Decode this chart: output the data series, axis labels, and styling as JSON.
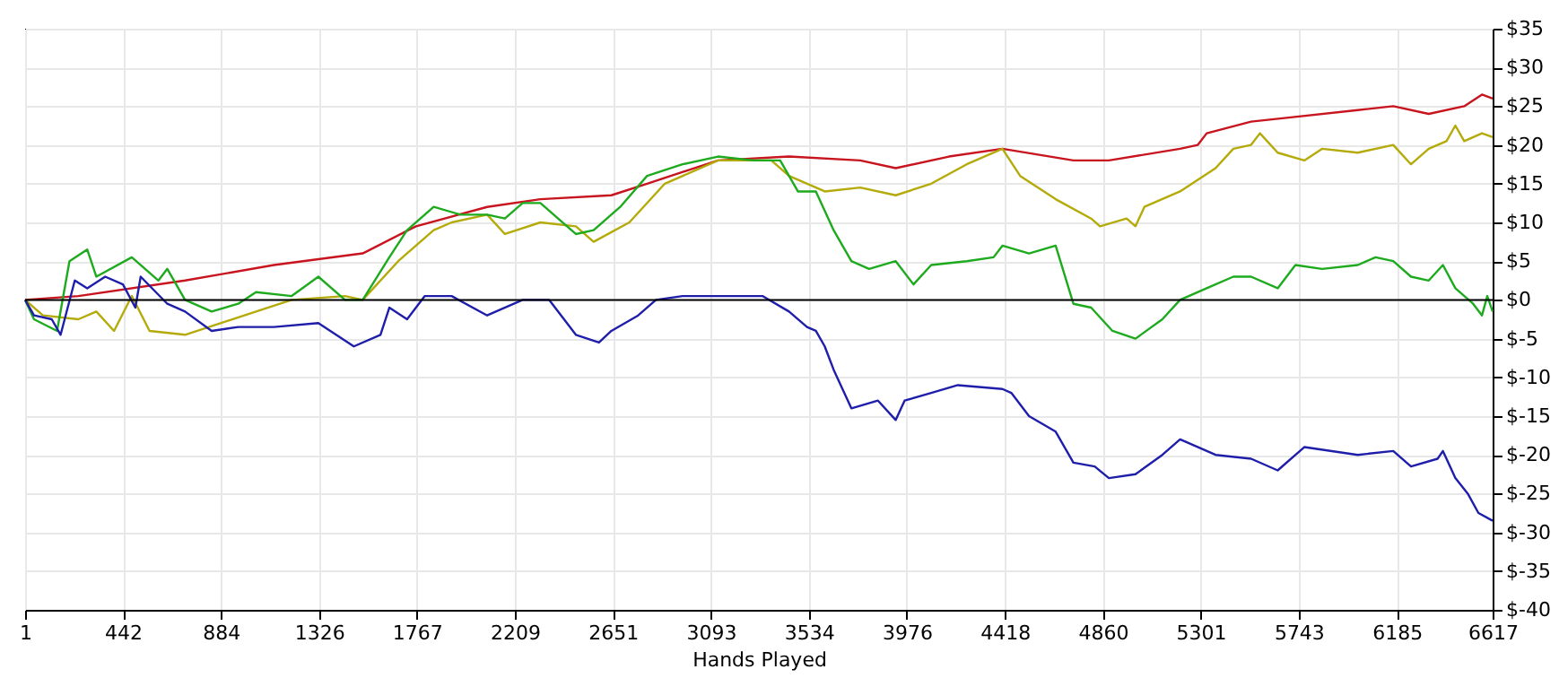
{
  "chart_data": {
    "type": "line",
    "xlabel": "Hands Played",
    "xlim": [
      1,
      6617
    ],
    "xticks": [
      1,
      442,
      884,
      1326,
      1767,
      2209,
      2651,
      3093,
      3534,
      3976,
      4418,
      4860,
      5301,
      5743,
      6185,
      6617
    ],
    "ylim": [
      -40,
      35
    ],
    "yticks": [
      {
        "value": 35,
        "label": "$35"
      },
      {
        "value": 30,
        "label": "$30"
      },
      {
        "value": 25,
        "label": "$25"
      },
      {
        "value": 20,
        "label": "$20"
      },
      {
        "value": 15,
        "label": "$15"
      },
      {
        "value": 10,
        "label": "$10"
      },
      {
        "value": 5,
        "label": "$5"
      },
      {
        "value": 0,
        "label": "$0"
      },
      {
        "value": -5,
        "label": "$-5"
      },
      {
        "value": -10,
        "label": "$-10"
      },
      {
        "value": -15,
        "label": "$-15"
      },
      {
        "value": -20,
        "label": "$-20"
      },
      {
        "value": -25,
        "label": "$-25"
      },
      {
        "value": -30,
        "label": "$-30"
      },
      {
        "value": -35,
        "label": "$-35"
      },
      {
        "value": -40,
        "label": "$-40"
      }
    ],
    "grid": true,
    "marker": "none",
    "line_style": "solid",
    "ref_lines": [
      {
        "axis": "y",
        "value": 0,
        "color": "#000000"
      }
    ],
    "series": [
      {
        "color": "#c8141e",
        "x": [
          1,
          241,
          722,
          1123,
          1523,
          1763,
          2084,
          2324,
          2644,
          2805,
          3125,
          3445,
          3766,
          3926,
          4166,
          4407,
          4727,
          4887,
          5208,
          5288,
          5328,
          5528,
          5688,
          6009,
          6169,
          6329,
          6489,
          6569,
          6617
        ],
        "values": [
          0,
          0.5,
          2.5,
          4.5,
          6,
          9.5,
          12,
          13,
          13.5,
          15,
          18,
          18.5,
          18,
          17,
          18.5,
          19.5,
          18,
          18,
          19.5,
          20,
          21.5,
          23,
          23.5,
          24.5,
          25,
          24,
          25,
          26.5,
          26
        ]
      },
      {
        "color": "#b4aa0a",
        "x": [
          1,
          81,
          241,
          322,
          402,
          482,
          562,
          722,
          882,
          1042,
          1203,
          1443,
          1523,
          1683,
          1843,
          1924,
          2084,
          2164,
          2324,
          2484,
          2564,
          2725,
          2885,
          3125,
          3365,
          3445,
          3606,
          3766,
          3926,
          4086,
          4246,
          4407,
          4487,
          4647,
          4807,
          4847,
          4967,
          5007,
          5047,
          5208,
          5368,
          5448,
          5528,
          5568,
          5648,
          5768,
          5848,
          6009,
          6169,
          6249,
          6329,
          6409,
          6449,
          6489,
          6569,
          6617
        ],
        "values": [
          0,
          -2,
          -2.5,
          -1.5,
          -4,
          0.5,
          -4,
          -4.5,
          -3,
          -1.5,
          0,
          0.5,
          0,
          5,
          9,
          10,
          11,
          8.5,
          10,
          9.5,
          7.5,
          10,
          15,
          18,
          18,
          16,
          14,
          14.5,
          13.5,
          15,
          17.5,
          19.5,
          16,
          13,
          10.5,
          9.5,
          10.5,
          9.5,
          12,
          14,
          17,
          19.5,
          20,
          21.5,
          19,
          18,
          19.5,
          19,
          20,
          17.5,
          19.5,
          20.5,
          22.5,
          20.5,
          21.5,
          21
        ]
      },
      {
        "color": "#1eaa1e",
        "x": [
          1,
          41,
          145,
          201,
          281,
          322,
          482,
          602,
          642,
          722,
          842,
          962,
          1042,
          1203,
          1323,
          1443,
          1523,
          1643,
          1723,
          1843,
          1964,
          2084,
          2164,
          2244,
          2324,
          2484,
          2564,
          2684,
          2805,
          2965,
          3125,
          3285,
          3405,
          3485,
          3566,
          3646,
          3726,
          3806,
          3926,
          4006,
          4086,
          4246,
          4367,
          4407,
          4527,
          4647,
          4727,
          4807,
          4903,
          5007,
          5128,
          5208,
          5328,
          5448,
          5528,
          5648,
          5728,
          5848,
          6009,
          6089,
          6169,
          6249,
          6329,
          6393,
          6449,
          6529,
          6569,
          6593,
          6617
        ],
        "values": [
          0,
          -2.5,
          -4,
          5,
          6.5,
          3,
          5.5,
          2.5,
          4,
          0,
          -1.5,
          -0.5,
          1,
          0.5,
          3,
          0,
          0,
          5.5,
          9,
          12,
          11,
          11,
          10.5,
          12.5,
          12.5,
          8.5,
          9,
          12,
          16,
          17.5,
          18.5,
          18,
          18,
          14,
          14,
          9,
          5,
          4,
          5,
          2,
          4.5,
          5,
          5.5,
          7,
          6,
          7,
          -0.5,
          -1,
          -4,
          -5,
          -2.5,
          0,
          1.5,
          3,
          3,
          1.5,
          4.5,
          4,
          4.5,
          5.5,
          5,
          3,
          2.5,
          4.5,
          1.5,
          -0.5,
          -2,
          0.5,
          -1.5
        ]
      },
      {
        "color": "#1e1eaa",
        "x": [
          1,
          41,
          121,
          161,
          225,
          281,
          362,
          442,
          498,
          522,
          642,
          722,
          842,
          962,
          1123,
          1323,
          1403,
          1483,
          1603,
          1643,
          1723,
          1803,
          1924,
          2084,
          2244,
          2364,
          2484,
          2588,
          2644,
          2765,
          2845,
          2965,
          3125,
          3325,
          3445,
          3526,
          3566,
          3606,
          3646,
          3686,
          3726,
          3846,
          3926,
          3966,
          4086,
          4206,
          4407,
          4447,
          4527,
          4647,
          4727,
          4823,
          4887,
          5007,
          5128,
          5208,
          5368,
          5528,
          5648,
          5768,
          6009,
          6169,
          6249,
          6369,
          6393,
          6449,
          6505,
          6553,
          6617
        ],
        "values": [
          0,
          -2,
          -2.5,
          -4.5,
          2.5,
          1.5,
          3,
          2,
          -1,
          3,
          -0.5,
          -1.5,
          -4,
          -3.5,
          -3.5,
          -3,
          -4.5,
          -6,
          -4.5,
          -1,
          -2.5,
          0.5,
          0.5,
          -2,
          0,
          0,
          -4.5,
          -5.5,
          -4,
          -2,
          0,
          0.5,
          0.5,
          0.5,
          -1.5,
          -3.5,
          -4,
          -6,
          -9,
          -11.5,
          -14,
          -13,
          -15.5,
          -13,
          -12,
          -11,
          -11.5,
          -12,
          -15,
          -17,
          -21,
          -21.5,
          -23,
          -22.5,
          -20,
          -18,
          -20,
          -20.5,
          -22,
          -19,
          -20,
          -19.5,
          -21.5,
          -20.5,
          -19.5,
          -23,
          -25,
          -27.5,
          -28.5
        ]
      }
    ]
  }
}
